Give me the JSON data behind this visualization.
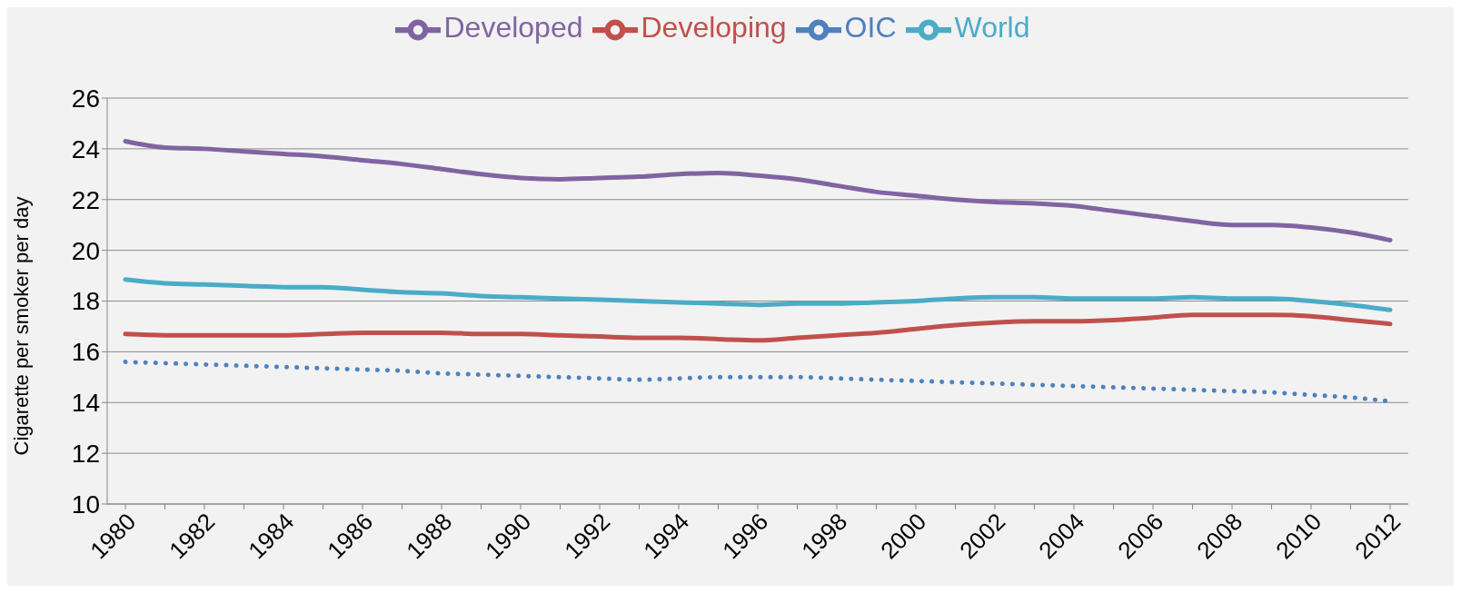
{
  "chart_data": {
    "type": "line",
    "ylabel": "Cigarette per smoker per day",
    "categories": [
      "1980",
      null,
      "1982",
      null,
      "1984",
      null,
      "1986",
      null,
      "1988",
      null,
      "1990",
      null,
      "1992",
      null,
      "1994",
      null,
      "1996",
      null,
      "1998",
      null,
      "2000",
      null,
      "2002",
      null,
      "2004",
      null,
      "2006",
      null,
      "2008",
      null,
      "2010",
      null,
      "2012"
    ],
    "series": [
      {
        "name": "OIC",
        "color": "#4f81bd",
        "line_style": "dotted",
        "values": [
          15.6,
          15.55,
          15.5,
          15.45,
          15.4,
          15.35,
          15.3,
          15.25,
          15.15,
          15.1,
          15.05,
          15.0,
          14.95,
          14.9,
          14.95,
          15.0,
          15.0,
          15.0,
          14.95,
          14.9,
          14.85,
          14.8,
          14.75,
          14.7,
          14.65,
          14.6,
          14.55,
          14.5,
          14.45,
          14.4,
          14.3,
          14.2,
          14.05
        ]
      },
      {
        "name": "Developing",
        "color": "#c0504d",
        "line_style": "solid",
        "values": [
          16.7,
          16.65,
          16.65,
          16.65,
          16.65,
          16.7,
          16.75,
          16.75,
          16.75,
          16.7,
          16.7,
          16.65,
          16.6,
          16.55,
          16.55,
          16.5,
          16.45,
          16.55,
          16.65,
          16.75,
          16.9,
          17.05,
          17.15,
          17.2,
          17.2,
          17.25,
          17.35,
          17.45,
          17.45,
          17.45,
          17.4,
          17.25,
          17.1
        ]
      },
      {
        "name": "Developed",
        "color": "#8064a2",
        "line_style": "solid",
        "values": [
          24.3,
          24.05,
          24.0,
          23.9,
          23.8,
          23.7,
          23.55,
          23.4,
          23.2,
          23.0,
          22.85,
          22.8,
          22.85,
          22.9,
          23.0,
          23.05,
          22.95,
          22.8,
          22.55,
          22.3,
          22.15,
          22.0,
          21.9,
          21.85,
          21.75,
          21.55,
          21.35,
          21.15,
          21.0,
          21.0,
          20.9,
          20.7,
          20.4
        ]
      },
      {
        "name": "World",
        "color": "#4bacc6",
        "line_style": "solid",
        "values": [
          18.85,
          18.7,
          18.65,
          18.6,
          18.55,
          18.55,
          18.45,
          18.35,
          18.3,
          18.2,
          18.15,
          18.1,
          18.05,
          18.0,
          17.95,
          17.9,
          17.85,
          17.9,
          17.9,
          17.95,
          18.0,
          18.1,
          18.15,
          18.15,
          18.1,
          18.1,
          18.1,
          18.15,
          18.1,
          18.1,
          18.0,
          17.85,
          17.65
        ]
      }
    ],
    "ylim": [
      10,
      26
    ],
    "yticks": [
      10,
      12,
      14,
      16,
      18,
      20,
      22,
      24,
      26
    ],
    "grid": "y",
    "legend": "top",
    "marker": "none"
  }
}
